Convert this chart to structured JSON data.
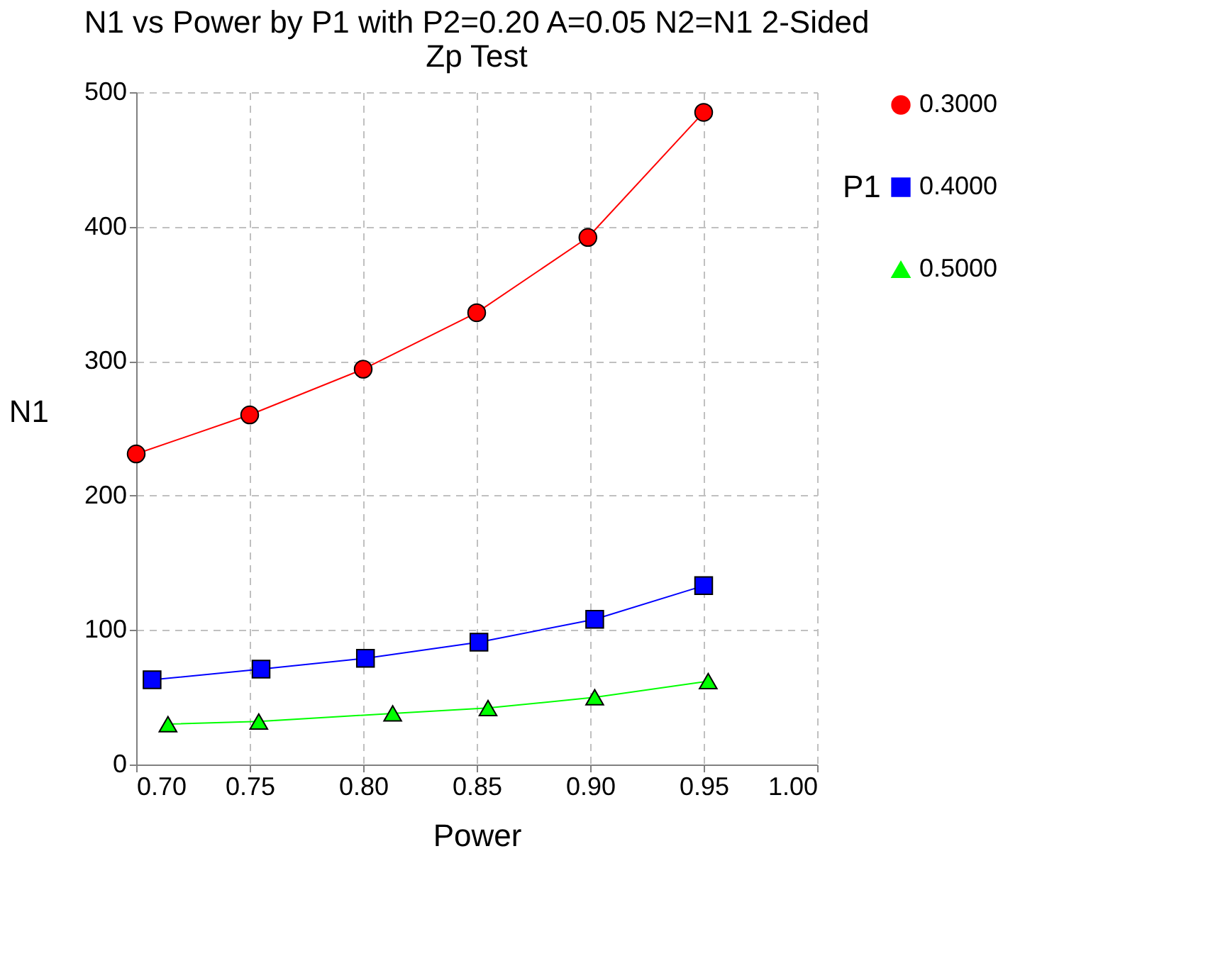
{
  "chart_data": {
    "type": "line",
    "title": [
      "N1 vs Power by P1 with P2=0.20 A=0.05 N2=N1 2-Sided",
      "Zp Test"
    ],
    "xlabel": "Power",
    "ylabel": "N1",
    "legend_title": "P1",
    "legend": "right",
    "grid": true,
    "line_style": "solid",
    "xlim": [
      0.7,
      1.0
    ],
    "xticks": [
      {
        "value": 0.7,
        "label": "0.70"
      },
      {
        "value": 0.75,
        "label": "0.75"
      },
      {
        "value": 0.8,
        "label": "0.80"
      },
      {
        "value": 0.85,
        "label": "0.85"
      },
      {
        "value": 0.9,
        "label": "0.90"
      },
      {
        "value": 0.95,
        "label": "0.95"
      },
      {
        "value": 1.0,
        "label": "1.00"
      }
    ],
    "ylim": [
      0,
      500
    ],
    "yticks": [
      0,
      100,
      200,
      300,
      400,
      500
    ],
    "series": [
      {
        "name": "0.3000",
        "color": "#ff0000",
        "marker": "circle",
        "x": [
          0.7,
          0.75,
          0.8,
          0.85,
          0.899,
          0.95
        ],
        "values": [
          231,
          260,
          294,
          336,
          392,
          485
        ]
      },
      {
        "name": "0.4000",
        "color": "#0000ff",
        "marker": "square",
        "x": [
          0.707,
          0.755,
          0.801,
          0.851,
          0.902,
          0.95
        ],
        "values": [
          63,
          71,
          79,
          91,
          108,
          133
        ]
      },
      {
        "name": "0.5000",
        "color": "#00ff00",
        "marker": "triangle",
        "x": [
          0.714,
          0.754,
          0.813,
          0.855,
          0.902,
          0.952
        ],
        "values": [
          30,
          32,
          38,
          42,
          50,
          62
        ]
      }
    ]
  }
}
